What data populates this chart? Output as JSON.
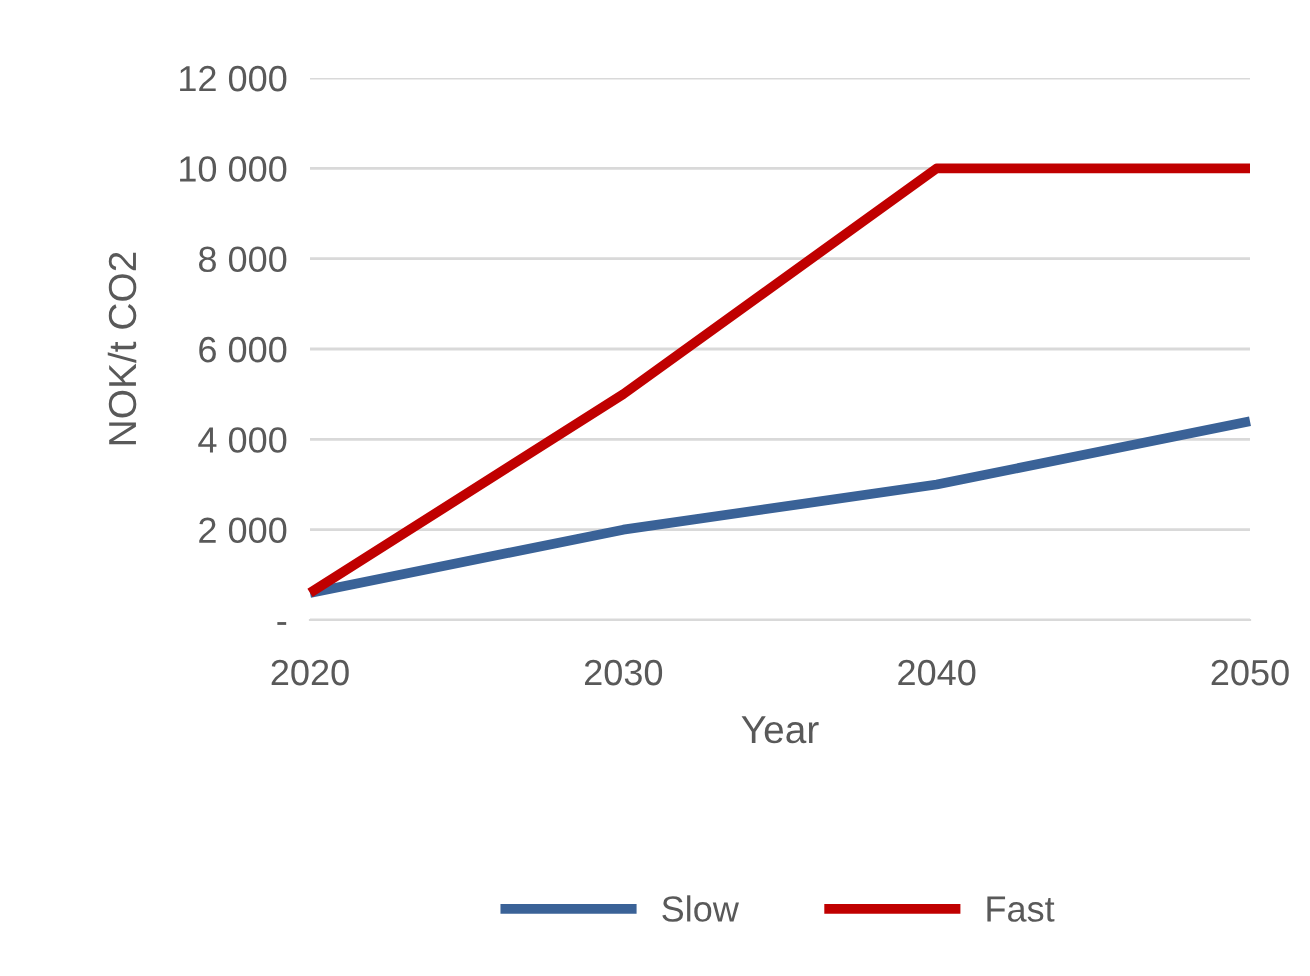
{
  "chart_data": {
    "type": "line",
    "xlabel": "Year",
    "ylabel": "NOK/t CO2",
    "x": [
      2020,
      2030,
      2040,
      2050
    ],
    "series": [
      {
        "name": "Slow",
        "color": "#3a6297",
        "values": [
          600,
          2000,
          3000,
          4400
        ]
      },
      {
        "name": "Fast",
        "color": "#c00000",
        "values": [
          600,
          5000,
          10000,
          10000
        ]
      }
    ],
    "xlim": [
      2020,
      2050
    ],
    "xticks": [
      2020,
      2030,
      2040,
      2050
    ],
    "ylim": [
      0,
      12000
    ],
    "yticks": [
      {
        "value": 0,
        "label": "-"
      },
      {
        "value": 2000,
        "label": "2 000"
      },
      {
        "value": 4000,
        "label": "4 000"
      },
      {
        "value": 6000,
        "label": "6 000"
      },
      {
        "value": 8000,
        "label": "8 000"
      },
      {
        "value": 10000,
        "label": "10 000"
      },
      {
        "value": 12000,
        "label": "12 000"
      }
    ],
    "grid": "y",
    "legend": "bottom",
    "marker": "none",
    "line_style": "solid"
  }
}
